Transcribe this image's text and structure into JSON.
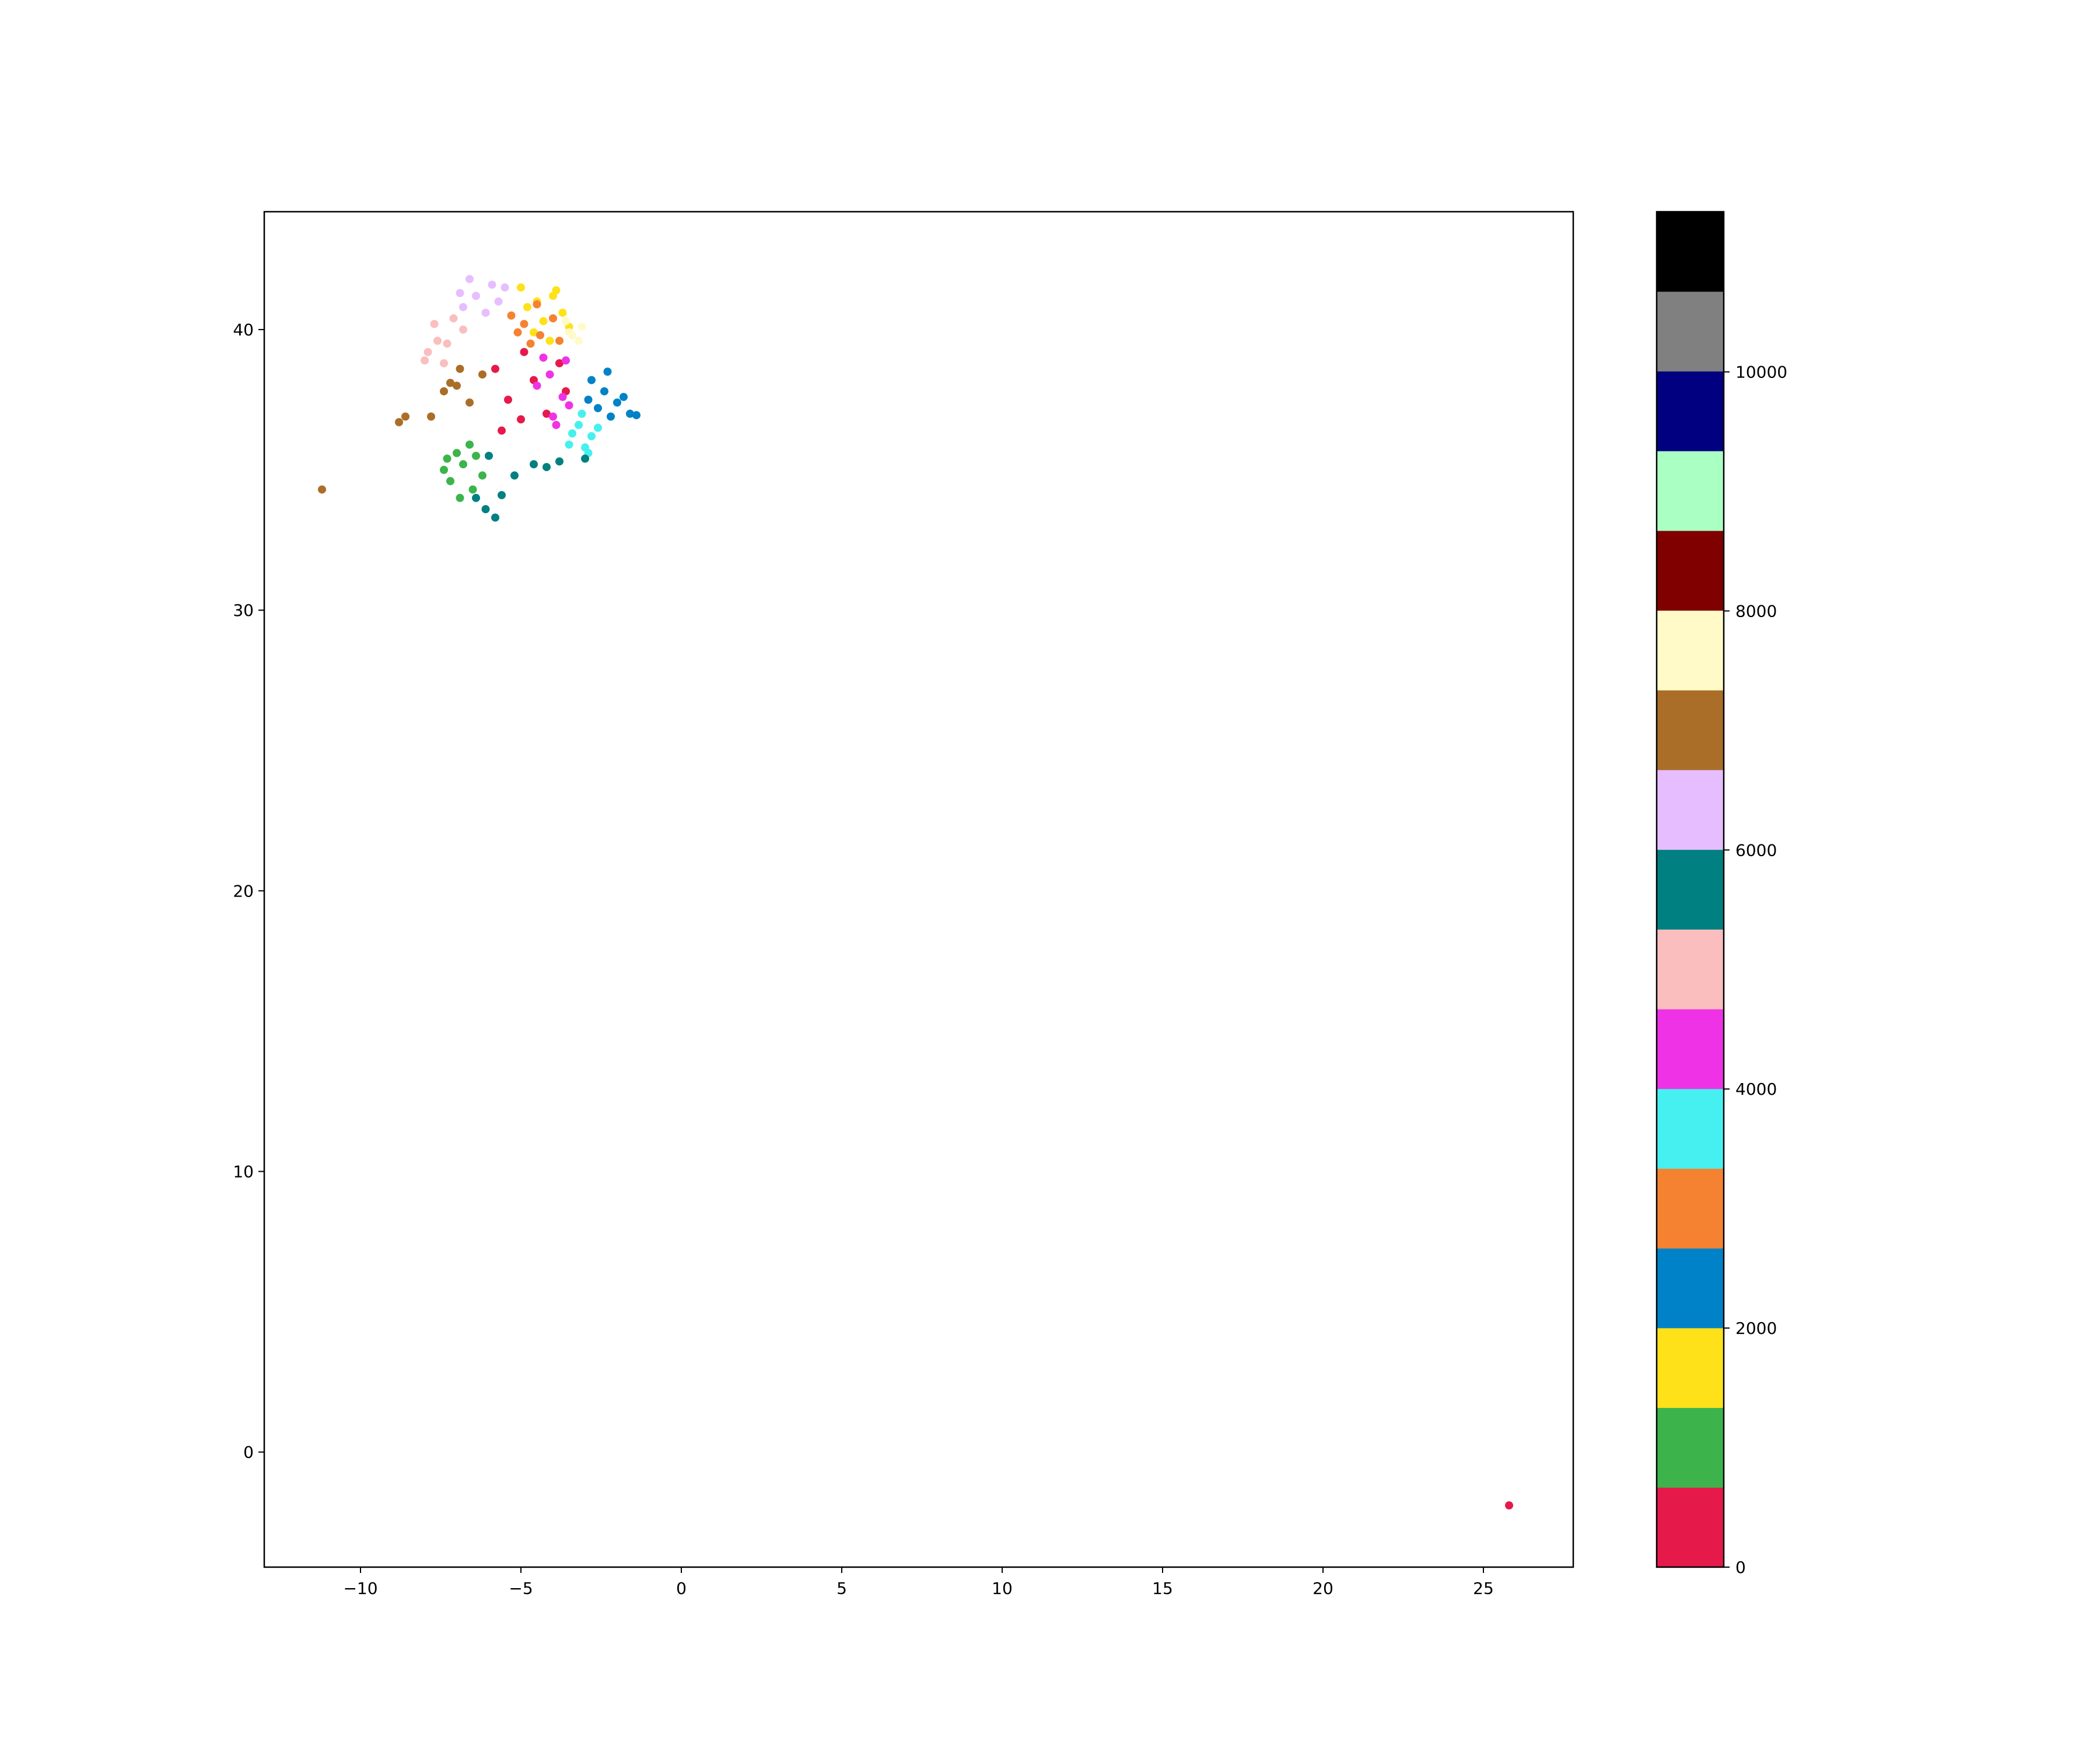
{
  "chart_data": {
    "type": "scatter",
    "title": "",
    "xlabel": "",
    "ylabel": "",
    "xlim": [
      -13.0,
      27.8
    ],
    "ylim": [
      -4.1,
      44.2
    ],
    "x_ticks": [
      -10,
      -5,
      0,
      5,
      10,
      15,
      20,
      25
    ],
    "x_tick_labels": [
      "−10",
      "−5",
      "0",
      "5",
      "10",
      "15",
      "20",
      "25"
    ],
    "y_ticks": [
      0,
      10,
      20,
      30,
      40
    ],
    "y_tick_labels": [
      "0",
      "10",
      "20",
      "30",
      "40"
    ],
    "grid": false,
    "colorbar": {
      "range": [
        0,
        11340
      ],
      "ticks": [
        0,
        2000,
        4000,
        6000,
        8000,
        10000
      ],
      "tick_labels": [
        "0",
        "2000",
        "4000",
        "6000",
        "8000",
        "10000"
      ],
      "colors": [
        "#e6194b",
        "#3cb44b",
        "#ffe119",
        "#0082c8",
        "#f58231",
        "#46f0f0",
        "#f032e6",
        "#fabebe",
        "#008080",
        "#e6beff",
        "#aa6e28",
        "#fffac8",
        "#800000",
        "#aaffc3",
        "#000080",
        "#808080",
        "#000000"
      ]
    },
    "series": [
      {
        "color": "#e6194b",
        "x": [
          25.8,
          -4.6,
          -5.4,
          -3.8,
          -5.0,
          -4.2,
          -5.8,
          -3.6,
          -4.9,
          -5.6
        ],
        "y": [
          -1.9,
          38.2,
          37.5,
          38.8,
          36.8,
          37.0,
          38.6,
          37.8,
          39.2,
          36.4
        ]
      },
      {
        "color": "#3cb44b",
        "x": [
          -6.8,
          -7.2,
          -6.5,
          -7.0,
          -6.2,
          -7.4,
          -6.6,
          -6.9,
          -7.3,
          -6.4
        ],
        "y": [
          35.2,
          34.6,
          34.3,
          35.6,
          34.8,
          35.0,
          35.9,
          34.0,
          35.4,
          35.5
        ]
      },
      {
        "color": "#ffe119",
        "x": [
          -4.5,
          -4.0,
          -3.7,
          -4.3,
          -4.8,
          -3.9,
          -4.6,
          -4.1,
          -3.5,
          -5.0
        ],
        "y": [
          41.0,
          41.2,
          40.6,
          40.3,
          40.8,
          41.4,
          39.9,
          39.6,
          40.1,
          41.5
        ]
      },
      {
        "color": "#0082c8",
        "x": [
          -2.4,
          -2.0,
          -1.6,
          -2.8,
          -2.2,
          -1.8,
          -2.6,
          -1.4,
          -2.3,
          -2.9
        ],
        "y": [
          37.8,
          37.4,
          37.0,
          38.2,
          36.9,
          37.6,
          37.2,
          36.95,
          38.5,
          37.5
        ]
      },
      {
        "color": "#f58231",
        "x": [
          -4.9,
          -4.4,
          -5.3,
          -4.0,
          -4.7,
          -5.1,
          -3.8,
          -4.5
        ],
        "y": [
          40.2,
          39.8,
          40.5,
          40.4,
          39.5,
          39.9,
          39.6,
          40.9
        ]
      },
      {
        "color": "#46f0f0",
        "x": [
          -3.2,
          -2.8,
          -3.5,
          -2.9,
          -3.1,
          -2.6,
          -3.4,
          -3.0
        ],
        "y": [
          36.6,
          36.2,
          35.9,
          35.6,
          37.0,
          36.5,
          36.3,
          35.8
        ]
      },
      {
        "color": "#f032e6",
        "x": [
          -4.1,
          -3.7,
          -4.5,
          -3.9,
          -3.5,
          -4.3,
          -3.6,
          -4.0
        ],
        "y": [
          38.4,
          37.6,
          38.0,
          36.6,
          37.3,
          39.0,
          38.9,
          36.9
        ]
      },
      {
        "color": "#fabebe",
        "x": [
          -7.6,
          -7.9,
          -7.1,
          -7.4,
          -6.8,
          -8.0,
          -7.3,
          -7.7
        ],
        "y": [
          39.6,
          39.2,
          40.4,
          38.8,
          40.0,
          38.9,
          39.5,
          40.2
        ]
      },
      {
        "color": "#008080",
        "x": [
          -6.1,
          -5.8,
          -6.4,
          -5.2,
          -4.6,
          -3.8,
          -3.0,
          -5.6,
          -6.0,
          -4.2
        ],
        "y": [
          33.6,
          33.3,
          34.0,
          34.8,
          35.2,
          35.3,
          35.4,
          34.1,
          35.5,
          35.1
        ]
      },
      {
        "color": "#e6beff",
        "x": [
          -6.4,
          -5.9,
          -6.8,
          -5.5,
          -6.1,
          -6.6,
          -5.7,
          -6.9
        ],
        "y": [
          41.2,
          41.6,
          40.8,
          41.5,
          40.6,
          41.8,
          41.0,
          41.3
        ]
      },
      {
        "color": "#aa6e28",
        "x": [
          -11.2,
          -7.0,
          -6.6,
          -7.4,
          -6.2,
          -7.8,
          -6.9,
          -8.8,
          -8.6,
          -7.2
        ],
        "y": [
          34.3,
          38.0,
          37.4,
          37.8,
          38.4,
          36.9,
          38.6,
          36.7,
          36.9,
          38.1
        ]
      },
      {
        "color": "#fffac8",
        "x": [
          -3.4,
          -3.1,
          -3.6,
          -3.2,
          -3.5
        ],
        "y": [
          39.8,
          40.1,
          40.3,
          39.6,
          39.9
        ]
      }
    ]
  }
}
